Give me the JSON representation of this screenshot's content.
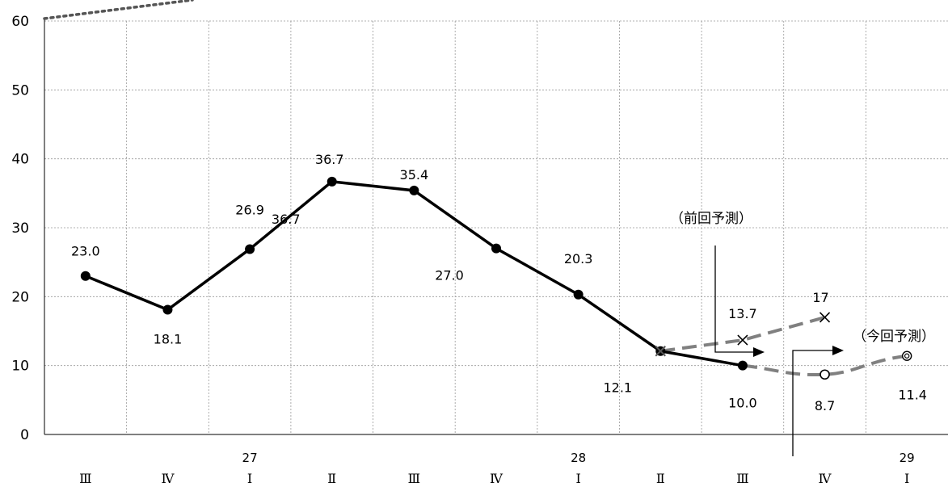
{
  "chart_data": {
    "type": "line",
    "title": "",
    "xlabel": "",
    "ylabel": "",
    "ylim": [
      0,
      60
    ],
    "yticks": [
      0,
      10,
      20,
      30,
      40,
      50,
      60
    ],
    "grid": true,
    "categories": [
      "Ⅲ",
      "Ⅳ",
      "Ⅰ",
      "Ⅱ",
      "Ⅲ",
      "Ⅳ",
      "Ⅰ",
      "Ⅱ",
      "Ⅲ",
      "Ⅳ",
      "Ⅰ"
    ],
    "year_labels": [
      {
        "index": 2,
        "label": "27"
      },
      {
        "index": 6,
        "label": "28"
      },
      {
        "index": 10,
        "label": "29"
      }
    ],
    "series": [
      {
        "style": "solid-black-dots",
        "values": [
          23.0,
          18.1,
          26.9,
          36.7,
          35.4,
          27.0,
          20.3,
          12.1,
          10.0,
          null,
          null
        ],
        "labels": [
          "23.0",
          "18.1",
          "26.9",
          "36.7",
          "35.4",
          "27.0",
          "20.3",
          "12.1",
          "10.0",
          "",
          ""
        ]
      },
      {
        "style": "dashed-gray-cross",
        "values": [
          null,
          null,
          null,
          null,
          null,
          null,
          null,
          12.1,
          13.7,
          17,
          null
        ],
        "labels": [
          "",
          "",
          "",
          "",
          "",
          "",
          "",
          "",
          "13.7",
          "17",
          ""
        ]
      },
      {
        "style": "dashed-gray-circle",
        "values": [
          null,
          null,
          null,
          null,
          null,
          null,
          null,
          null,
          10.0,
          8.7,
          11.4
        ],
        "labels": [
          "",
          "",
          "",
          "",
          "",
          "",
          "",
          "",
          "",
          "8.7",
          "11.4"
        ]
      }
    ],
    "extra_labels": [
      {
        "index": 3,
        "value": 36.7,
        "text": "36.7"
      }
    ],
    "annotations": {
      "previous_forecast": "（前回予測）",
      "current_forecast": "（今回予測）"
    },
    "colors": {
      "actual": "#000000",
      "forecast": "#808080",
      "grid": "#999999"
    }
  }
}
